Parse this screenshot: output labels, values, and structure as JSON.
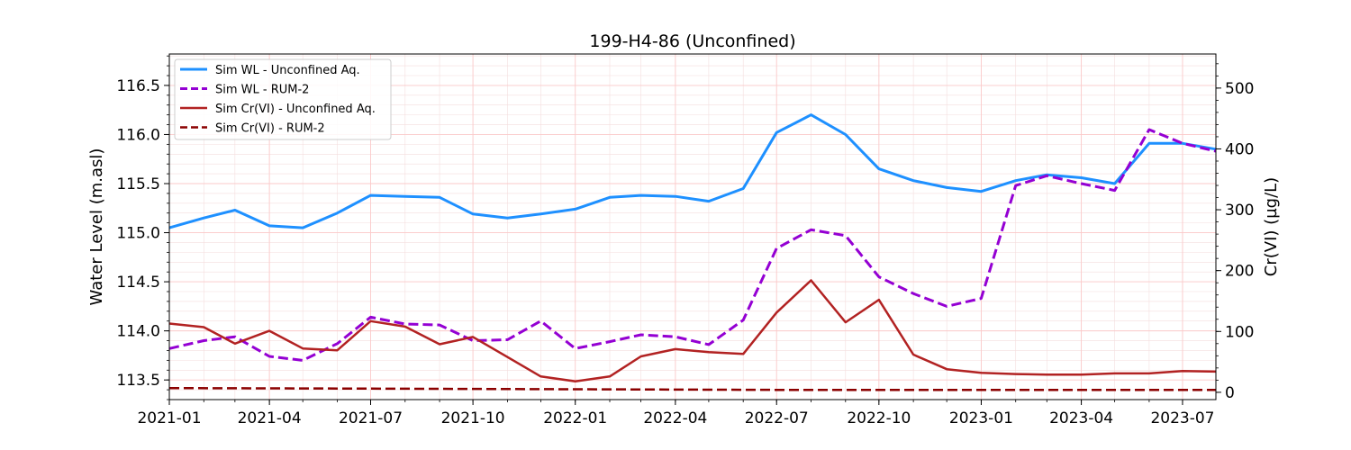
{
  "chart_data": {
    "type": "line",
    "title": "199-H4-86 (Unconfined)",
    "ylabel": "Water Level (m.asl)",
    "y2label": "Cr(VI) (µg/L)",
    "xlabel": "",
    "xlim": [
      "2021-01-01",
      "2023-07-31"
    ],
    "ylim": [
      113.3,
      116.82
    ],
    "y2lim": [
      -12,
      556
    ],
    "grid": true,
    "legend_position": "top-left",
    "x_ticks": [
      {
        "date": "2021-01-01",
        "label": "2021-01"
      },
      {
        "date": "2021-04-01",
        "label": "2021-04"
      },
      {
        "date": "2021-07-01",
        "label": "2021-07"
      },
      {
        "date": "2021-10-01",
        "label": "2021-10"
      },
      {
        "date": "2022-01-01",
        "label": "2022-01"
      },
      {
        "date": "2022-04-01",
        "label": "2022-04"
      },
      {
        "date": "2022-07-01",
        "label": "2022-07"
      },
      {
        "date": "2022-10-01",
        "label": "2022-10"
      },
      {
        "date": "2023-01-01",
        "label": "2023-01"
      },
      {
        "date": "2023-04-01",
        "label": "2023-04"
      },
      {
        "date": "2023-07-01",
        "label": "2023-07"
      }
    ],
    "y_ticks": [
      113.5,
      114.0,
      114.5,
      115.0,
      115.5,
      116.0,
      116.5
    ],
    "y_tick_labels": [
      "113.5",
      "114.0",
      "114.5",
      "115.0",
      "115.5",
      "116.0",
      "116.5"
    ],
    "y2_ticks": [
      0,
      100,
      200,
      300,
      400,
      500
    ],
    "y2_tick_labels": [
      "0",
      "100",
      "200",
      "300",
      "400",
      "500"
    ],
    "series": [
      {
        "name": "Sim WL - Unconfined Aq.",
        "axis": "left",
        "color": "#1E90FF",
        "dash": "solid",
        "x": [
          "2021-01-01",
          "2021-02-01",
          "2021-03-01",
          "2021-04-01",
          "2021-05-01",
          "2021-06-01",
          "2021-07-01",
          "2021-08-01",
          "2021-09-01",
          "2021-10-01",
          "2021-11-01",
          "2021-12-01",
          "2022-01-01",
          "2022-02-01",
          "2022-03-01",
          "2022-04-01",
          "2022-05-01",
          "2022-06-01",
          "2022-07-01",
          "2022-08-01",
          "2022-09-01",
          "2022-10-01",
          "2022-11-01",
          "2022-12-01",
          "2023-01-01",
          "2023-02-01",
          "2023-03-01",
          "2023-04-01",
          "2023-05-01",
          "2023-06-01",
          "2023-07-01",
          "2023-07-31"
        ],
        "values": [
          115.05,
          115.15,
          115.23,
          115.07,
          115.05,
          115.2,
          115.38,
          115.37,
          115.36,
          115.19,
          115.15,
          115.19,
          115.24,
          115.36,
          115.38,
          115.37,
          115.32,
          115.45,
          116.02,
          116.2,
          116.0,
          115.65,
          115.53,
          115.46,
          115.42,
          115.53,
          115.59,
          115.56,
          115.5,
          115.91,
          115.91,
          115.85
        ]
      },
      {
        "name": "Sim WL - RUM-2",
        "axis": "left",
        "color": "#9400D3",
        "dash": "dashed",
        "x": [
          "2021-01-01",
          "2021-02-01",
          "2021-03-01",
          "2021-04-01",
          "2021-05-01",
          "2021-06-01",
          "2021-07-01",
          "2021-08-01",
          "2021-09-01",
          "2021-10-01",
          "2021-11-01",
          "2021-12-01",
          "2022-01-01",
          "2022-02-01",
          "2022-03-01",
          "2022-04-01",
          "2022-05-01",
          "2022-06-01",
          "2022-07-01",
          "2022-08-01",
          "2022-09-01",
          "2022-10-01",
          "2022-11-01",
          "2022-12-01",
          "2023-01-01",
          "2023-02-01",
          "2023-03-01",
          "2023-04-01",
          "2023-05-01",
          "2023-06-01",
          "2023-07-01",
          "2023-07-31"
        ],
        "values": [
          113.82,
          113.9,
          113.94,
          113.74,
          113.7,
          113.87,
          114.14,
          114.07,
          114.06,
          113.9,
          113.91,
          114.1,
          113.82,
          113.89,
          113.96,
          113.94,
          113.86,
          114.11,
          114.84,
          115.03,
          114.97,
          114.55,
          114.38,
          114.25,
          114.33,
          115.48,
          115.58,
          115.5,
          115.43,
          116.05,
          115.91,
          115.83
        ]
      },
      {
        "name": "Sim Cr(VI) - Unconfined Aq.",
        "axis": "right",
        "color": "#B22222",
        "dash": "solid",
        "x": [
          "2021-01-01",
          "2021-02-01",
          "2021-03-01",
          "2021-04-01",
          "2021-05-01",
          "2021-06-01",
          "2021-07-01",
          "2021-08-01",
          "2021-09-01",
          "2021-10-01",
          "2021-11-01",
          "2021-12-01",
          "2022-01-01",
          "2022-02-01",
          "2022-03-01",
          "2022-04-01",
          "2022-05-01",
          "2022-06-01",
          "2022-07-01",
          "2022-08-01",
          "2022-09-01",
          "2022-10-01",
          "2022-11-01",
          "2022-12-01",
          "2023-01-01",
          "2023-02-01",
          "2023-03-01",
          "2023-04-01",
          "2023-05-01",
          "2023-06-01",
          "2023-07-01",
          "2023-07-31"
        ],
        "values": [
          113,
          107,
          80,
          101,
          72,
          69,
          117,
          108,
          79,
          91,
          58,
          26,
          18,
          26,
          59,
          71,
          66,
          63,
          131,
          184,
          115,
          152,
          62,
          38,
          32,
          30,
          29,
          29,
          31,
          31,
          35,
          34
        ]
      },
      {
        "name": "Sim Cr(VI) - RUM-2",
        "axis": "right",
        "color": "#8B0000",
        "dash": "dashed",
        "x": [
          "2021-01-01",
          "2021-07-01",
          "2022-01-01",
          "2022-07-01",
          "2023-01-01",
          "2023-07-31"
        ],
        "values": [
          7,
          6,
          5,
          4,
          4,
          4
        ]
      }
    ]
  }
}
